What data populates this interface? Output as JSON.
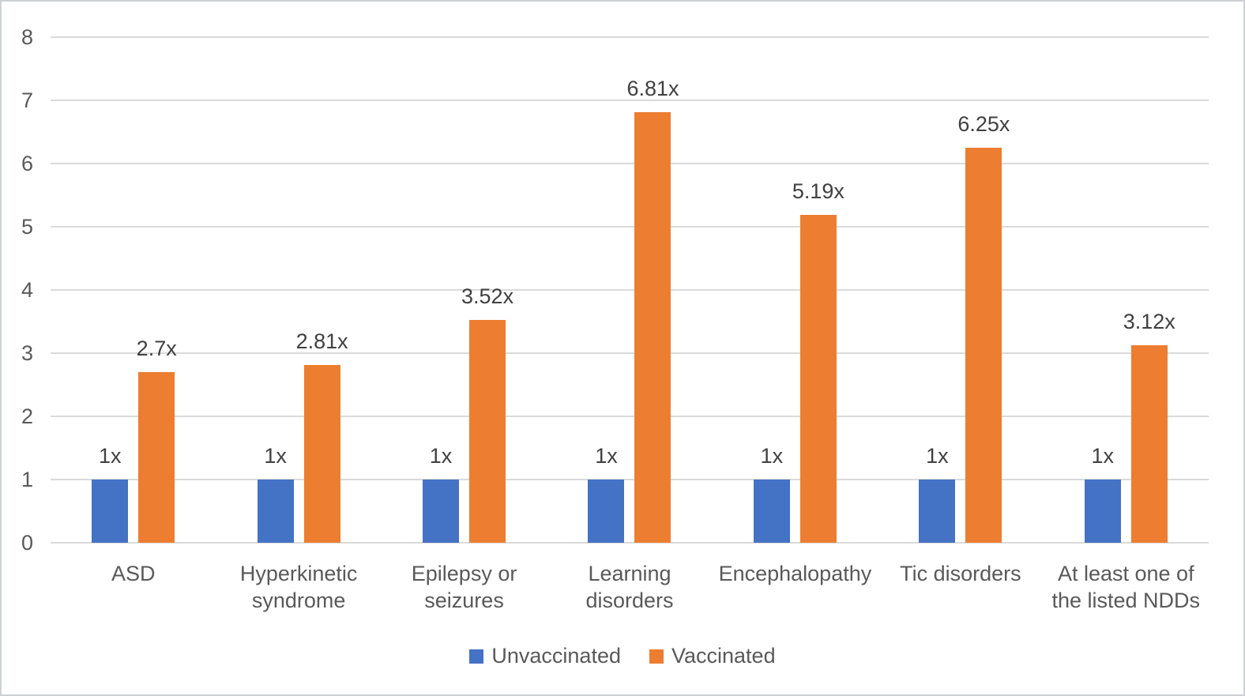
{
  "chart_data": {
    "type": "bar",
    "title": "",
    "xlabel": "",
    "ylabel": "",
    "categories": [
      "ASD",
      "Hyperkinetic syndrome",
      "Epilepsy or seizures",
      "Learning disorders",
      "Encephalopathy",
      "Tic disorders",
      "At least one of the listed NDDs"
    ],
    "category_display_lines": [
      [
        "ASD"
      ],
      [
        "Hyperkinetic",
        "syndrome"
      ],
      [
        "Epilepsy or",
        "seizures"
      ],
      [
        "Learning",
        "disorders"
      ],
      [
        "Encephalopathy"
      ],
      [
        "Tic disorders"
      ],
      [
        "At least one of",
        "the listed NDDs"
      ]
    ],
    "series": [
      {
        "name": "Unvaccinated",
        "color": "#4472C4",
        "values": [
          1,
          1,
          1,
          1,
          1,
          1,
          1
        ],
        "data_labels": [
          "1x",
          "1x",
          "1x",
          "1x",
          "1x",
          "1x",
          "1x"
        ]
      },
      {
        "name": "Vaccinated",
        "color": "#ED7D31",
        "values": [
          2.7,
          2.81,
          3.52,
          6.81,
          5.19,
          6.25,
          3.12
        ],
        "data_labels": [
          "2.7x",
          "2.81x",
          "3.52x",
          "6.81x",
          "5.19x",
          "6.25x",
          "3.12x"
        ]
      }
    ],
    "ylim": [
      0,
      8
    ],
    "yticks": [
      "0",
      "1",
      "2",
      "3",
      "4",
      "5",
      "6",
      "7",
      "8"
    ],
    "grid": true,
    "legend_position": "bottom"
  },
  "style": {
    "grid_color": "#DADADA",
    "axis_text_color": "#595959",
    "data_label_color": "#404040",
    "frame_border_color": "#CFD1D4",
    "background": "#FFFFFF"
  }
}
